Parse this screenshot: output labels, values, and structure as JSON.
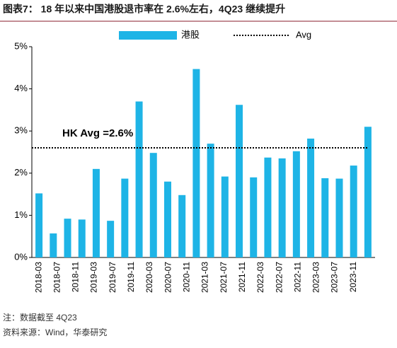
{
  "chart_data": {
    "type": "bar",
    "title": "图表7： 18 年以来中国港股退市率在 2.6%左右，4Q23 继续提升",
    "categories": [
      null,
      null,
      null,
      null,
      null,
      null,
      null,
      null,
      null,
      null,
      null,
      null,
      null,
      null,
      null,
      null,
      null,
      null,
      null,
      null,
      null,
      null,
      null,
      null
    ],
    "xtick_labels": [
      "2018-03",
      "2018-07",
      "2018-11",
      "2019-03",
      "2019-07",
      "2019-11",
      "2020-03",
      "2020-07",
      "2020-11",
      "2021-03",
      "2021-07",
      "2021-11",
      "2022-03",
      "2022-07",
      "2022-11",
      "2023-03",
      "2023-07",
      "2023-11"
    ],
    "series": [
      {
        "name": "港股",
        "color": "#1eb4e6",
        "values": [
          1.52,
          0.57,
          0.92,
          0.9,
          2.1,
          0.87,
          1.87,
          3.7,
          2.48,
          1.8,
          1.48,
          4.47,
          2.7,
          1.92,
          3.62,
          1.9,
          2.37,
          2.35,
          2.52,
          2.82,
          1.88,
          1.87,
          2.18,
          3.1
        ]
      }
    ],
    "avg": {
      "name": "Avg",
      "value": 2.6,
      "color": "#000000",
      "annotation": "HK Avg =2.6%"
    },
    "ylim": [
      0,
      5
    ],
    "yticks": [
      {
        "value": 0,
        "label": "0%"
      },
      {
        "value": 1,
        "label": "1%"
      },
      {
        "value": 2,
        "label": "2%"
      },
      {
        "value": 3,
        "label": "3%"
      },
      {
        "value": 4,
        "label": "4%"
      },
      {
        "value": 5,
        "label": "5%"
      }
    ],
    "notes": [
      "注：数据截至 4Q23",
      "资料来源：Wind，华泰研究"
    ]
  }
}
